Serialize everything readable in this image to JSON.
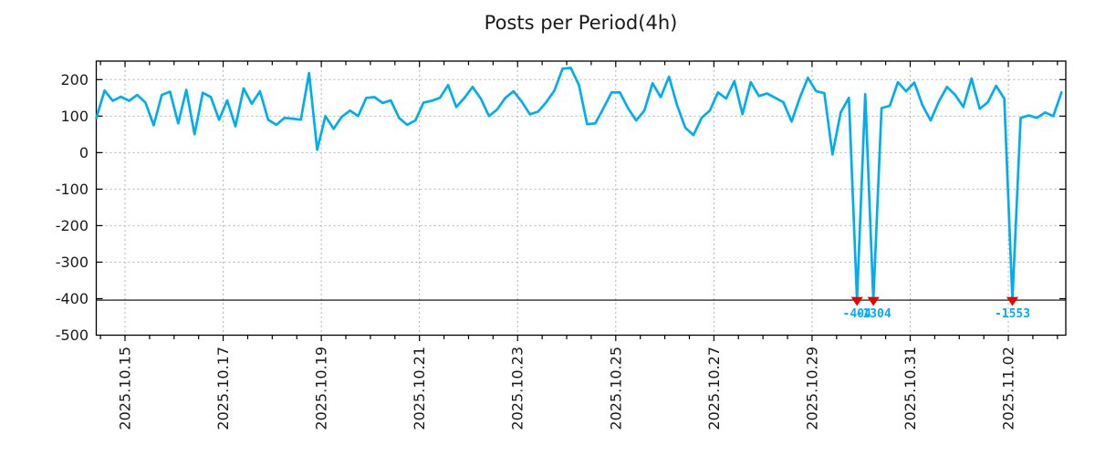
{
  "title": "Posts per Period(4h)",
  "chart_data": {
    "type": "line",
    "title": "Posts per Period(4h)",
    "legend": "none",
    "grid": true,
    "x_axis": {
      "tick_labels": [
        "2025.10.15",
        "2025.10.17",
        "2025.10.19",
        "2025.10.21",
        "2025.10.23",
        "2025.10.25",
        "2025.10.27",
        "2025.10.29",
        "2025.10.31",
        "2025.11.02"
      ],
      "tick_interval_days": 2,
      "minor_tick_hours": 12,
      "series_start": "2025.10.14 10:00",
      "step_hours": 4,
      "labels_rotated_degrees": 90
    },
    "y_axis": {
      "ticks": [
        200,
        100,
        0,
        -100,
        -200,
        -300,
        -400,
        -500
      ],
      "range": [
        -500,
        250
      ],
      "gridline_values": [
        200,
        100,
        0,
        -100,
        -200,
        -300
      ]
    },
    "threshold_line_value": -404,
    "clip_min": -404,
    "series": [
      {
        "name": "posts",
        "values": [
          95,
          170,
          142,
          153,
          142,
          158,
          137,
          75,
          158,
          167,
          80,
          172,
          50,
          164,
          152,
          90,
          143,
          72,
          176,
          134,
          168,
          90,
          76,
          95,
          93,
          90,
          218,
          8,
          100,
          65,
          98,
          115,
          100,
          150,
          152,
          136,
          143,
          95,
          76,
          88,
          137,
          142,
          150,
          185,
          125,
          150,
          180,
          148,
          100,
          118,
          150,
          168,
          140,
          105,
          112,
          138,
          170,
          230,
          232,
          185,
          78,
          80,
          122,
          165,
          165,
          122,
          88,
          115,
          190,
          152,
          208,
          130,
          68,
          48,
          95,
          115,
          165,
          148,
          196,
          105,
          193,
          155,
          162,
          150,
          138,
          85,
          150,
          205,
          168,
          163,
          -5,
          110,
          150,
          -404,
          160,
          -1304,
          122,
          128,
          193,
          168,
          192,
          130,
          88,
          140,
          180,
          158,
          125,
          203,
          120,
          138,
          183,
          148,
          -1553,
          95,
          102,
          95,
          110,
          100,
          165
        ]
      }
    ],
    "clipped_points": [
      {
        "index": 93,
        "value": -404,
        "label": "-404"
      },
      {
        "index": 95,
        "value": -1304,
        "label": "-1304"
      },
      {
        "index": 112,
        "value": -1553,
        "label": "-1553"
      }
    ],
    "colors": {
      "line": "#00aeef",
      "marker": "#e10600",
      "marker_label": "#00aeef",
      "grid": "#b3b3b3",
      "axis": "#000000",
      "tick_label": "#1a1a1a",
      "title": "#1a1a1a",
      "background": "#ffffff"
    }
  }
}
